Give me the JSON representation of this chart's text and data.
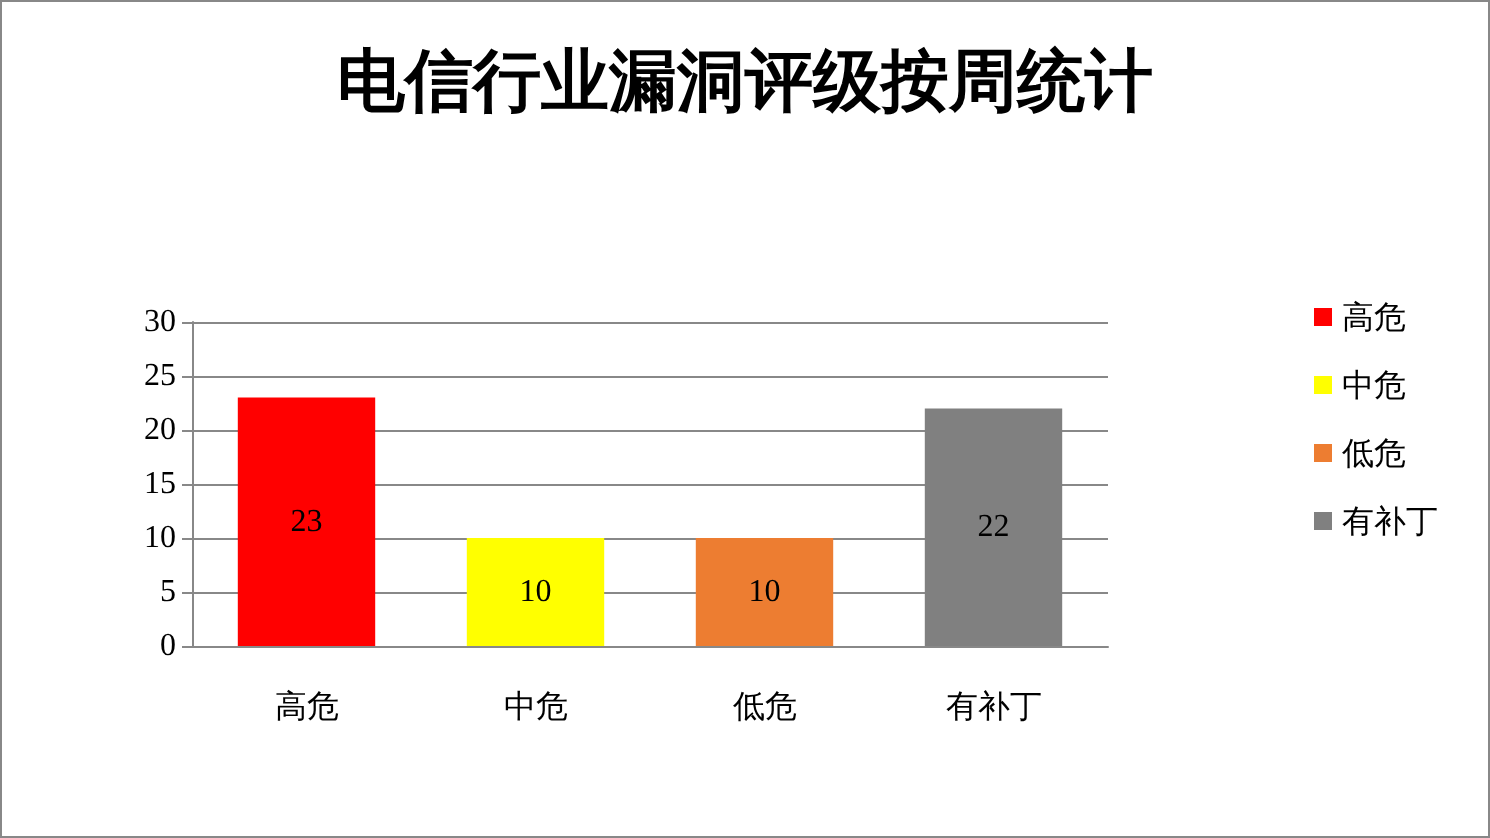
{
  "chart_data": {
    "type": "bar",
    "title": "电信行业漏洞评级按周统计",
    "categories": [
      "高危",
      "中危",
      "低危",
      "有补丁"
    ],
    "series": [
      {
        "name": "高危",
        "color": "#ff0000",
        "values": [
          23,
          null,
          null,
          null
        ]
      },
      {
        "name": "中危",
        "color": "#ffff00",
        "values": [
          null,
          10,
          null,
          null
        ]
      },
      {
        "name": "低危",
        "color": "#ed7d31",
        "values": [
          null,
          null,
          10,
          null
        ]
      },
      {
        "name": "有补丁",
        "color": "#808080",
        "values": [
          null,
          null,
          null,
          22
        ]
      }
    ],
    "ylim": [
      0,
      30
    ],
    "yticks": [
      0,
      5,
      10,
      15,
      20,
      25,
      30
    ],
    "grid": "y",
    "legend": "right",
    "data_labels": true
  }
}
